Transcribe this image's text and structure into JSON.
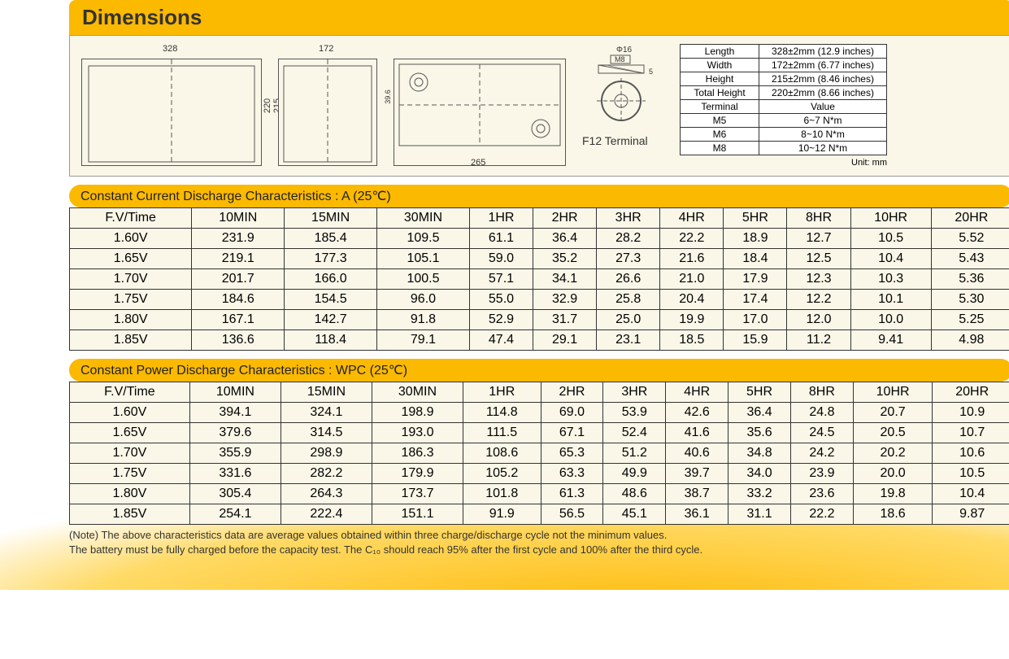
{
  "title": "Dimensions",
  "drawings": {
    "width_label": "328",
    "side_width_label": "172",
    "h1": "220",
    "h2": "215",
    "top_len": "265",
    "top_h": "39.6",
    "term_phi": "Φ16",
    "term_m": "M8",
    "term_h": "5",
    "terminal_caption": "F12 Terminal"
  },
  "dims_table": {
    "rows": [
      [
        "Length",
        "328±2mm (12.9 inches)"
      ],
      [
        "Width",
        "172±2mm (6.77 inches)"
      ],
      [
        "Height",
        "215±2mm (8.46 inches)"
      ],
      [
        "Total Height",
        "220±2mm (8.66 inches)"
      ]
    ],
    "term_header": [
      "Terminal",
      "Value"
    ],
    "term_rows": [
      [
        "M5",
        "6~7    N*m"
      ],
      [
        "M6",
        "8~10   N*m"
      ],
      [
        "M8",
        "10~12  N*m"
      ]
    ],
    "unit": "Unit: mm"
  },
  "table1": {
    "title": "Constant Current Discharge Characteristics : A (25℃)",
    "headers": [
      "F.V/Time",
      "10MIN",
      "15MIN",
      "30MIN",
      "1HR",
      "2HR",
      "3HR",
      "4HR",
      "5HR",
      "8HR",
      "10HR",
      "20HR"
    ],
    "rows": [
      [
        "1.60V",
        "231.9",
        "185.4",
        "109.5",
        "61.1",
        "36.4",
        "28.2",
        "22.2",
        "18.9",
        "12.7",
        "10.5",
        "5.52"
      ],
      [
        "1.65V",
        "219.1",
        "177.3",
        "105.1",
        "59.0",
        "35.2",
        "27.3",
        "21.6",
        "18.4",
        "12.5",
        "10.4",
        "5.43"
      ],
      [
        "1.70V",
        "201.7",
        "166.0",
        "100.5",
        "57.1",
        "34.1",
        "26.6",
        "21.0",
        "17.9",
        "12.3",
        "10.3",
        "5.36"
      ],
      [
        "1.75V",
        "184.6",
        "154.5",
        "96.0",
        "55.0",
        "32.9",
        "25.8",
        "20.4",
        "17.4",
        "12.2",
        "10.1",
        "5.30"
      ],
      [
        "1.80V",
        "167.1",
        "142.7",
        "91.8",
        "52.9",
        "31.7",
        "25.0",
        "19.9",
        "17.0",
        "12.0",
        "10.0",
        "5.25"
      ],
      [
        "1.85V",
        "136.6",
        "118.4",
        "79.1",
        "47.4",
        "29.1",
        "23.1",
        "18.5",
        "15.9",
        "11.2",
        "9.41",
        "4.98"
      ]
    ]
  },
  "table2": {
    "title": "Constant Power Discharge Characteristics : WPC (25℃)",
    "headers": [
      "F.V/Time",
      "10MIN",
      "15MIN",
      "30MIN",
      "1HR",
      "2HR",
      "3HR",
      "4HR",
      "5HR",
      "8HR",
      "10HR",
      "20HR"
    ],
    "rows": [
      [
        "1.60V",
        "394.1",
        "324.1",
        "198.9",
        "114.8",
        "69.0",
        "53.9",
        "42.6",
        "36.4",
        "24.8",
        "20.7",
        "10.9"
      ],
      [
        "1.65V",
        "379.6",
        "314.5",
        "193.0",
        "111.5",
        "67.1",
        "52.4",
        "41.6",
        "35.6",
        "24.5",
        "20.5",
        "10.7"
      ],
      [
        "1.70V",
        "355.9",
        "298.9",
        "186.3",
        "108.6",
        "65.3",
        "51.2",
        "40.6",
        "34.8",
        "24.2",
        "20.2",
        "10.6"
      ],
      [
        "1.75V",
        "331.6",
        "282.2",
        "179.9",
        "105.2",
        "63.3",
        "49.9",
        "39.7",
        "34.0",
        "23.9",
        "20.0",
        "10.5"
      ],
      [
        "1.80V",
        "305.4",
        "264.3",
        "173.7",
        "101.8",
        "61.3",
        "48.6",
        "38.7",
        "33.2",
        "23.6",
        "19.8",
        "10.4"
      ],
      [
        "1.85V",
        "254.1",
        "222.4",
        "151.1",
        "91.9",
        "56.5",
        "45.1",
        "36.1",
        "31.1",
        "22.2",
        "18.6",
        "9.87"
      ]
    ]
  },
  "note_line1": "(Note) The above characteristics data are average values obtained within three charge/discharge cycle not the minimum values.",
  "note_line2": "The battery must be fully charged before the capacity test.  The C₁₀ should reach 95% after the first cycle and 100% after the third cycle."
}
